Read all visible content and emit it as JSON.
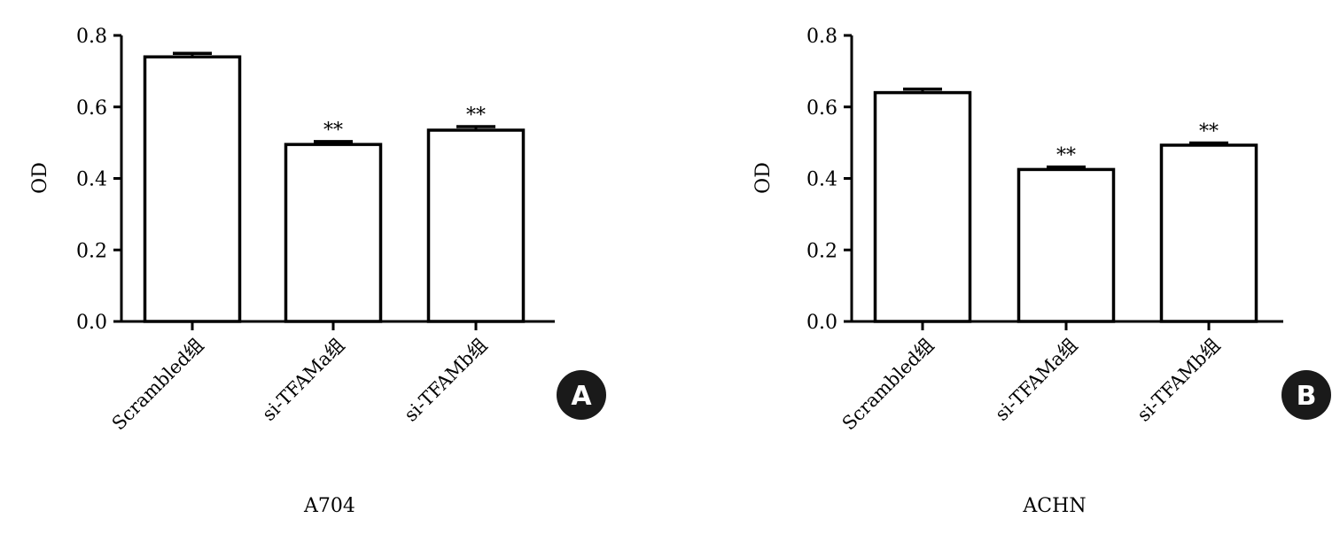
{
  "chart_data": [
    {
      "type": "bar",
      "panel": "A",
      "xlabel": "A704",
      "ylabel": "OD",
      "ylim": [
        0,
        0.8
      ],
      "yticks": [
        "0.0",
        "0.2",
        "0.4",
        "0.6",
        "0.8"
      ],
      "categories": [
        "Scrambled组",
        "si-TFAMa组",
        "si-TFAMb组"
      ],
      "values": [
        0.74,
        0.495,
        0.535
      ],
      "errors": [
        0.01,
        0.008,
        0.01
      ],
      "annotations": [
        "",
        "**",
        "**"
      ],
      "bar_color": "#ffffff",
      "edge_color": "#000000"
    },
    {
      "type": "bar",
      "panel": "B",
      "xlabel": "ACHN",
      "ylabel": "OD",
      "ylim": [
        0,
        0.8
      ],
      "yticks": [
        "0.0",
        "0.2",
        "0.4",
        "0.6",
        "0.8"
      ],
      "categories": [
        "Scrambled组",
        "si-TFAMa组",
        "si-TFAMb组"
      ],
      "values": [
        0.64,
        0.425,
        0.493
      ],
      "errors": [
        0.01,
        0.007,
        0.006
      ],
      "annotations": [
        "",
        "**",
        "**"
      ],
      "bar_color": "#ffffff",
      "edge_color": "#000000"
    }
  ]
}
